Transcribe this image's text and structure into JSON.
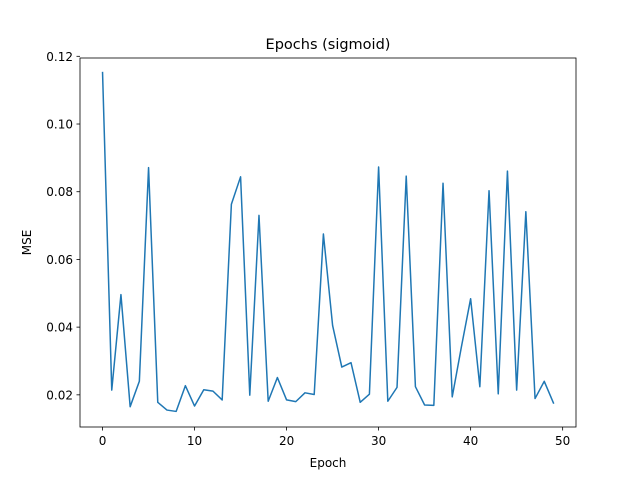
{
  "chart_data": {
    "type": "line",
    "title": "Epochs (sigmoid)",
    "xlabel": "Epoch",
    "ylabel": "MSE",
    "xlim": [
      -2.45,
      51.45
    ],
    "ylim": [
      0.0105,
      0.1195
    ],
    "xticks": [
      0,
      10,
      20,
      30,
      40,
      50
    ],
    "xtick_labels": [
      "0",
      "10",
      "20",
      "30",
      "40",
      "50"
    ],
    "yticks": [
      0.02,
      0.04,
      0.06,
      0.08,
      0.1,
      0.12
    ],
    "ytick_labels": [
      "0.02",
      "0.04",
      "0.06",
      "0.08",
      "0.10",
      "0.12"
    ],
    "grid": false,
    "series": [
      {
        "color": "#1f77b4",
        "x": [
          0,
          1,
          2,
          3,
          4,
          5,
          6,
          7,
          8,
          9,
          10,
          11,
          12,
          13,
          14,
          15,
          16,
          17,
          18,
          19,
          20,
          21,
          22,
          23,
          24,
          25,
          26,
          27,
          28,
          29,
          30,
          31,
          32,
          33,
          34,
          35,
          36,
          37,
          38,
          39,
          40,
          41,
          42,
          43,
          44,
          45,
          46,
          47,
          48,
          49
        ],
        "values": [
          0.1152,
          0.0214,
          0.0496,
          0.0165,
          0.024,
          0.0871,
          0.0178,
          0.0155,
          0.0151,
          0.0227,
          0.0167,
          0.0215,
          0.0211,
          0.0185,
          0.0763,
          0.0844,
          0.0199,
          0.073,
          0.0181,
          0.0251,
          0.0185,
          0.018,
          0.0206,
          0.0201,
          0.0675,
          0.0405,
          0.0282,
          0.0295,
          0.0178,
          0.0202,
          0.0873,
          0.0181,
          0.0222,
          0.0846,
          0.0224,
          0.017,
          0.0169,
          0.0825,
          0.0194,
          0.0342,
          0.0484,
          0.0224,
          0.0803,
          0.0203,
          0.0861,
          0.0214,
          0.0741,
          0.0189,
          0.024,
          0.0176
        ]
      }
    ]
  }
}
